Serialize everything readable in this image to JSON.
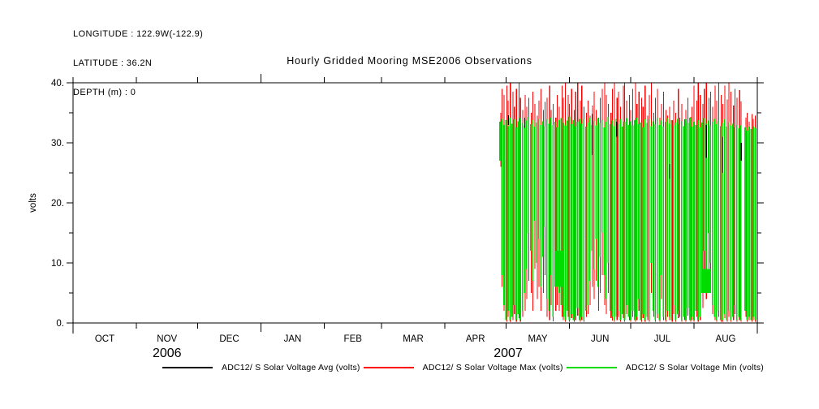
{
  "header": {
    "longitude": "LONGITUDE : 122.9W(-122.9)",
    "latitude": "LATITUDE : 36.2N",
    "depth": "DEPTH (m) : 0"
  },
  "title": "Hourly Gridded Mooring MSE2006 Observations",
  "colors": {
    "background": "#ffffff",
    "axis": "#000000",
    "avg": "#000000",
    "max": "#ff0000",
    "min": "#00dc00"
  },
  "legend": [
    {
      "label": "ADC12/ S Solar Voltage Avg (volts)",
      "color": "#000000"
    },
    {
      "label": "ADC12/ S Solar Voltage Max (volts)",
      "color": "#ff0000"
    },
    {
      "label": "ADC12/ S Solar Voltage Min (volts)",
      "color": "#00dc00"
    }
  ],
  "chart_data": {
    "type": "line",
    "title": "Hourly Gridded Mooring MSE2006 Observations",
    "ylabel": "volts",
    "ylim": [
      0,
      40
    ],
    "y_major_ticks": [
      0,
      10,
      20,
      30,
      40
    ],
    "y_tick_labels": [
      "0.",
      "10.",
      "20.",
      "30.",
      "40."
    ],
    "y_minor_step": 5,
    "grid": false,
    "legend_position": "bottom",
    "x_axis": {
      "start": "01-OCT-2006",
      "end": "01-SEP-2007",
      "month_labels": [
        "OCT",
        "NOV",
        "DEC",
        "JAN",
        "FEB",
        "MAR",
        "APR",
        "MAY",
        "JUN",
        "JUL",
        "AUG"
      ],
      "month_days": [
        31,
        30,
        31,
        31,
        28,
        31,
        30,
        31,
        30,
        31,
        31
      ],
      "year_labels": [
        {
          "label": "2006",
          "day_center": 46
        },
        {
          "label": "2007",
          "day_center": 213
        }
      ],
      "year_boundary_day": 92
    },
    "series": [
      {
        "name": "ADC12/ S Solar Voltage Avg (volts)",
        "color": "#000000",
        "role": "avg",
        "note": "mostly hidden behind min/max traces; visible as sparse dark dashes near tops"
      },
      {
        "name": "ADC12/ S Solar Voltage Max (volts)",
        "color": "#ff0000",
        "role": "max",
        "note": "hourly max, daily spikes up to ~40 V"
      },
      {
        "name": "ADC12/ S Solar Voltage Min (volts)",
        "color": "#00dc00",
        "role": "min",
        "note": "hourly min, oscillates between ~0 and ~33 V daily"
      }
    ],
    "samples": {
      "note": "daily envelope read from plot; data begins ~28-APR-2007 and runs to 31-AUG-2007; no data OCT-2006 through late APR-2007",
      "start_day_offset": 209,
      "green_low": [
        27,
        8,
        3,
        0.5,
        2,
        0.5,
        1,
        3,
        0.5,
        1.5,
        0.5,
        2,
        5,
        9,
        15,
        12,
        7,
        17,
        10,
        14,
        6,
        11,
        16,
        4,
        2,
        8,
        1,
        6,
        7,
        5,
        3,
        1,
        0.5,
        2,
        0.5,
        1.5,
        0.5,
        1,
        2.5,
        0.5,
        1,
        0.5,
        2,
        3,
        7,
        12,
        9,
        14,
        6,
        11,
        15,
        8,
        4,
        10,
        2,
        1,
        0.5,
        1,
        2,
        0.5,
        1.5,
        0.5,
        3,
        1,
        0.5,
        2,
        0.5,
        1,
        4,
        0.5,
        1.5,
        0.5,
        1,
        0.5,
        10,
        2,
        0.5,
        1.5,
        0.5,
        8,
        1,
        0.5,
        2,
        1,
        0.5,
        3,
        0.5,
        1.5,
        2,
        0.5,
        1,
        0.5,
        2.5,
        0.5,
        1,
        0.5,
        2,
        0.5,
        1,
        5,
        12,
        8,
        15,
        10,
        3,
        1,
        0.5,
        2,
        0.5,
        0.5,
        1.5,
        0.5,
        2,
        0.5,
        1,
        3,
        0.5,
        1,
        0.5,
        null,
        2,
        0.5,
        1,
        0.5,
        1,
        0.5
      ],
      "green_high": [
        33.5,
        34,
        33,
        33.8,
        32.8,
        34.2,
        33.2,
        33.9,
        32.6,
        33.6,
        34.1,
        33.3,
        32.9,
        33.7,
        34.3,
        33.1,
        33.8,
        32.7,
        33.4,
        34,
        33,
        33.6,
        32.8,
        33.9,
        33.2,
        34.2,
        33,
        33.5,
        32.6,
        33.8,
        34.1,
        33.3,
        32.9,
        33.7,
        34.4,
        33.1,
        33.8,
        32.8,
        33.5,
        34,
        33.2,
        33.9,
        32.7,
        33.4,
        34.2,
        33,
        33.6,
        32.9,
        34.1,
        33.3,
        33.8,
        32.6,
        33.5,
        34.3,
        33.1,
        33.7,
        32.8,
        34,
        33.2,
        33.9,
        32.7,
        33.5,
        34.1,
        33,
        33.6,
        32.9,
        33.8,
        34.2,
        33.1,
        33.4,
        32.6,
        33.9,
        33.3,
        34,
        32.8,
        33.6,
        33.1,
        34.2,
        33,
        33.7,
        32.7,
        33.5,
        34.1,
        33.2,
        33.8,
        32.9,
        33.4,
        34,
        33.1,
        33.6,
        32.8,
        33.9,
        33.3,
        34.2,
        32.7,
        33.5,
        33,
        33.8,
        32.6,
        33.4,
        34.1,
        33.2,
        33.7,
        32.9,
        33.5,
        34,
        33.1,
        33.6,
        32.8,
        33.3,
        33.9,
        32.7,
        33.4,
        32.9,
        33.2,
        32.6,
        33,
        32.4,
        32.9,
        null,
        32.6,
        32,
        32.7,
        32.3,
        32.8,
        32.5
      ],
      "red_high": [
        35,
        39,
        38,
        39.5,
        37,
        40,
        38.5,
        36,
        39,
        40,
        37.5,
        35.5,
        38,
        36,
        37.5,
        35,
        38.5,
        36.5,
        34.5,
        37,
        39,
        35.5,
        36.8,
        37.5,
        39.5,
        35.5,
        36.5,
        34.2,
        38,
        36,
        39.5,
        37.5,
        40,
        38,
        36.5,
        39,
        35.5,
        38.5,
        40,
        37,
        39.5,
        36,
        35,
        37,
        34.5,
        36.2,
        38.5,
        35.5,
        34.2,
        37.5,
        39,
        40,
        38,
        36.5,
        35,
        39,
        40,
        37.5,
        38.5,
        36,
        39.5,
        40,
        37,
        38,
        35.5,
        39,
        40,
        36.5,
        38.5,
        37.5,
        36,
        39.5,
        34.5,
        38,
        40,
        35,
        37.5,
        39,
        34.2,
        36.5,
        38.5,
        35.5,
        34.5,
        36,
        33.8,
        37,
        35,
        39,
        34.2,
        36.5,
        33.9,
        35.5,
        37.5,
        34.3,
        36,
        39.5,
        37,
        40,
        38,
        36.5,
        39,
        40,
        37.5,
        38.5,
        36,
        39.5,
        37,
        40,
        38,
        36.5,
        39.5,
        37.2,
        40,
        38.5,
        36.2,
        39,
        37.5,
        38.8,
        36.9,
        null,
        34.2,
        35,
        33.5,
        34.8,
        34,
        34.5
      ],
      "red_low": [
        26,
        6,
        2,
        0.2,
        1,
        0.2,
        0.5,
        1.5,
        0.2,
        0.8,
        0.2,
        1,
        2,
        4,
        7,
        5,
        2,
        9,
        4,
        6,
        2,
        5,
        8,
        1,
        0.5,
        3,
        0.3,
        2,
        3,
        2,
        1,
        0.5,
        0.2,
        1,
        0.2,
        0.8,
        0.2,
        0.5,
        1.2,
        0.2,
        0.5,
        0.2,
        1,
        1.5,
        3,
        6,
        4,
        7,
        2,
        5,
        8,
        3,
        1.5,
        5,
        0.8,
        0.4,
        0.2,
        0.5,
        1,
        0.2,
        0.8,
        0.2,
        1.5,
        0.5,
        0.2,
        1,
        0.2,
        0.5,
        2,
        0.2,
        0.8,
        0.2,
        0.5,
        0.2,
        5,
        1,
        0.2,
        0.8,
        0.2,
        4,
        0.5,
        0.2,
        1,
        0.5,
        0.2,
        1.5,
        0.2,
        0.8,
        1,
        0.2,
        0.5,
        0.2,
        1.2,
        0.2,
        0.5,
        0.2,
        1,
        0.2,
        0.5,
        2.5,
        6,
        4,
        8,
        5,
        1.5,
        0.5,
        0.2,
        1,
        0.2,
        0.2,
        0.8,
        0.2,
        1,
        0.2,
        0.5,
        1.5,
        0.2,
        0.5,
        0.2,
        null,
        1,
        0.2,
        0.5,
        0.2,
        0.5,
        0.2
      ],
      "black_marks": [
        {
          "i": 4,
          "lo": 33,
          "hi": 34.6
        },
        {
          "i": 12,
          "lo": 32.5,
          "hi": 34.2
        },
        {
          "i": 45,
          "lo": 28,
          "hi": 34.8
        },
        {
          "i": 57,
          "lo": 31,
          "hi": 33.5
        },
        {
          "i": 83,
          "lo": 24,
          "hi": 26.5
        },
        {
          "i": 101,
          "lo": 27.5,
          "hi": 33
        },
        {
          "i": 109,
          "lo": 25,
          "hi": 31
        },
        {
          "i": 118,
          "lo": 27,
          "hi": 30
        }
      ],
      "green_patches": [
        {
          "i0": 27,
          "i1": 31,
          "lo": 6,
          "hi": 12
        },
        {
          "i0": 99,
          "i1": 103,
          "lo": 5,
          "hi": 9
        }
      ]
    }
  }
}
